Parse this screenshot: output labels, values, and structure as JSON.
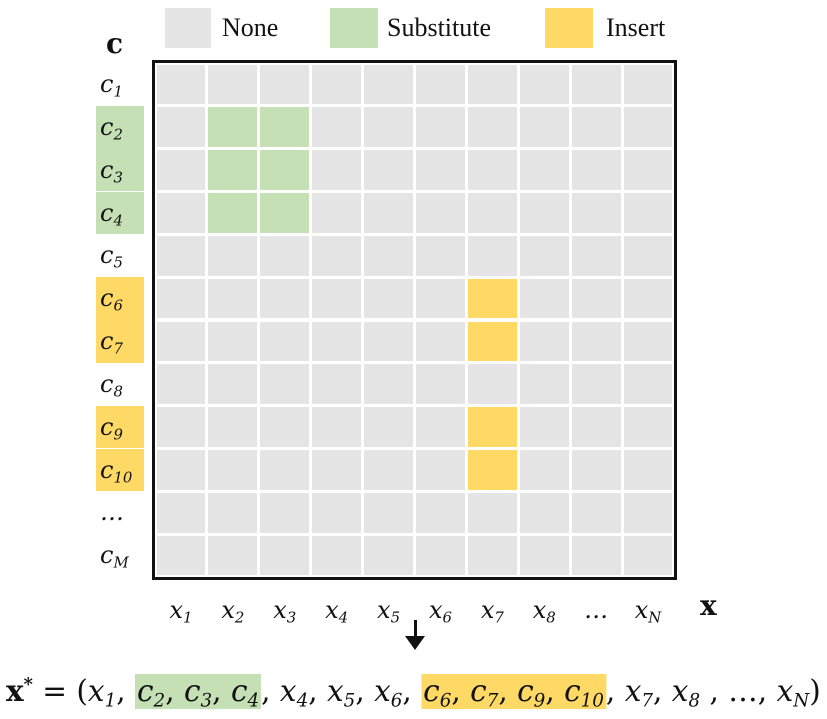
{
  "legend": [
    {
      "label": "None",
      "color": "#e5e5e5"
    },
    {
      "label": "Substitute",
      "color": "#c5e0b4"
    },
    {
      "label": "Insert",
      "color": "#ffd966"
    }
  ],
  "axis": {
    "y_title": "c",
    "x_title": "x"
  },
  "rows": [
    {
      "base": "c",
      "sub": "1",
      "hl": "none"
    },
    {
      "base": "c",
      "sub": "2",
      "hl": "sub"
    },
    {
      "base": "c",
      "sub": "3",
      "hl": "sub"
    },
    {
      "base": "c",
      "sub": "4",
      "hl": "sub"
    },
    {
      "base": "c",
      "sub": "5",
      "hl": "none"
    },
    {
      "base": "c",
      "sub": "6",
      "hl": "ins"
    },
    {
      "base": "c",
      "sub": "7",
      "hl": "ins"
    },
    {
      "base": "c",
      "sub": "8",
      "hl": "none"
    },
    {
      "base": "c",
      "sub": "9",
      "hl": "ins"
    },
    {
      "base": "c",
      "sub": "10",
      "hl": "ins"
    },
    {
      "base": "…",
      "sub": "",
      "hl": "none"
    },
    {
      "base": "c",
      "sub": "M",
      "hl": "none"
    }
  ],
  "cols": [
    {
      "base": "x",
      "sub": "1"
    },
    {
      "base": "x",
      "sub": "2"
    },
    {
      "base": "x",
      "sub": "3"
    },
    {
      "base": "x",
      "sub": "4"
    },
    {
      "base": "x",
      "sub": "5"
    },
    {
      "base": "x",
      "sub": "6"
    },
    {
      "base": "x",
      "sub": "7"
    },
    {
      "base": "x",
      "sub": "8"
    },
    {
      "base": "…",
      "sub": ""
    },
    {
      "base": "x",
      "sub": "N"
    }
  ],
  "highlighted_cells": [
    {
      "row": 1,
      "col": 1,
      "type": "sub"
    },
    {
      "row": 1,
      "col": 2,
      "type": "sub"
    },
    {
      "row": 2,
      "col": 1,
      "type": "sub"
    },
    {
      "row": 2,
      "col": 2,
      "type": "sub"
    },
    {
      "row": 3,
      "col": 1,
      "type": "sub"
    },
    {
      "row": 3,
      "col": 2,
      "type": "sub"
    },
    {
      "row": 5,
      "col": 6,
      "type": "ins"
    },
    {
      "row": 6,
      "col": 6,
      "type": "ins"
    },
    {
      "row": 8,
      "col": 6,
      "type": "ins"
    },
    {
      "row": 9,
      "col": 6,
      "type": "ins"
    }
  ],
  "formula": {
    "lhs": "x",
    "lhs_sup": "*",
    "equals": " = (",
    "segments": [
      {
        "base": "x",
        "sub": "1",
        "hl": "none",
        "sep": ", "
      },
      {
        "group": "sub",
        "items": [
          {
            "base": "c",
            "sub": "2",
            "sep": ", "
          },
          {
            "base": "c",
            "sub": "3",
            "sep": ", "
          },
          {
            "base": "c",
            "sub": "4",
            "sep": ""
          }
        ],
        "after": ", "
      },
      {
        "base": "x",
        "sub": "4",
        "hl": "none",
        "sep": ", "
      },
      {
        "base": "x",
        "sub": "5",
        "hl": "none",
        "sep": ", "
      },
      {
        "base": "x",
        "sub": "6",
        "hl": "none",
        "sep": ", "
      },
      {
        "group": "ins",
        "items": [
          {
            "base": "c",
            "sub": "6",
            "sep": ", "
          },
          {
            "base": "c",
            "sub": "7",
            "sep": ", "
          },
          {
            "base": "c",
            "sub": "9",
            "sep": ", "
          },
          {
            "base": "c",
            "sub": "10",
            "sep": ""
          }
        ],
        "after": ", "
      },
      {
        "base": "x",
        "sub": "7",
        "hl": "none",
        "sep": ", "
      },
      {
        "base": "x",
        "sub": "8",
        "hl": "none",
        "sep": "  , …, "
      },
      {
        "base": "x",
        "sub": "N",
        "hl": "none",
        "sep": ")"
      }
    ]
  }
}
